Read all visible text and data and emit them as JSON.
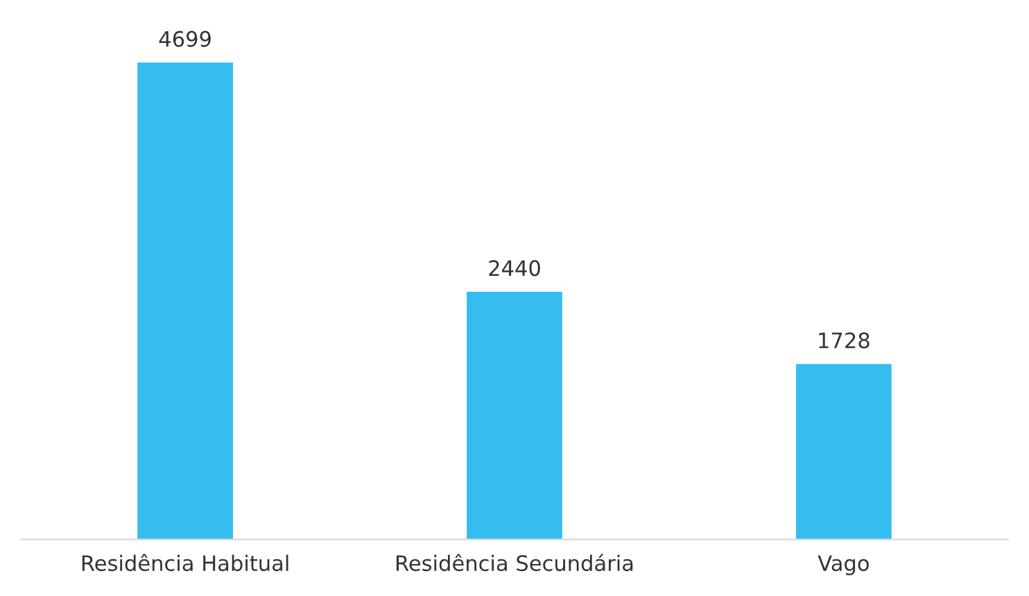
{
  "chart_data": {
    "type": "bar",
    "categories": [
      "Residência Habitual",
      "Residência Secundária",
      "Vago"
    ],
    "values": [
      4699,
      2440,
      1728
    ],
    "color": "#35bdf0",
    "data_labels": true,
    "grid": false,
    "legend": false
  }
}
